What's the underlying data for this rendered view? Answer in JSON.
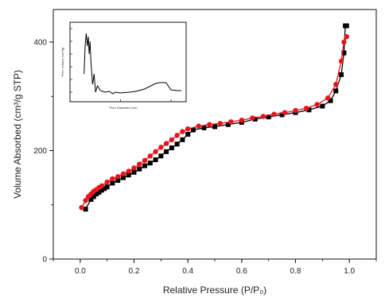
{
  "chart_data": [
    {
      "type": "scatter",
      "title": "",
      "xlabel": "Relative Pressure (P/P₀)",
      "ylabel": "Volume Absorbed (cm³/g STP)",
      "xlim": [
        -0.1,
        1.1
      ],
      "ylim": [
        0,
        460
      ],
      "xticks": [
        0.0,
        0.2,
        0.4,
        0.6,
        0.8,
        1.0
      ],
      "xtick_labels": [
        "0.0",
        "0.2",
        "0.4",
        "0.6",
        "0.8",
        "1.0"
      ],
      "yticks": [
        0,
        200,
        400
      ],
      "ytick_labels": [
        "0",
        "200",
        "400"
      ],
      "grid": false,
      "series": [
        {
          "marker": "square",
          "color": "#000000",
          "x": [
            0.02,
            0.04,
            0.05,
            0.06,
            0.07,
            0.08,
            0.09,
            0.1,
            0.12,
            0.14,
            0.16,
            0.18,
            0.2,
            0.22,
            0.24,
            0.26,
            0.28,
            0.3,
            0.32,
            0.34,
            0.36,
            0.38,
            0.4,
            0.42,
            0.46,
            0.5,
            0.55,
            0.6,
            0.65,
            0.7,
            0.75,
            0.8,
            0.85,
            0.9,
            0.93,
            0.95,
            0.97,
            0.98,
            0.985,
            0.99
          ],
          "y": [
            92,
            110,
            115,
            120,
            123,
            127,
            130,
            133,
            140,
            145,
            150,
            155,
            160,
            166,
            172,
            177,
            183,
            190,
            198,
            205,
            212,
            220,
            230,
            238,
            242,
            244,
            248,
            252,
            258,
            262,
            266,
            270,
            275,
            282,
            292,
            310,
            340,
            380,
            430,
            430
          ]
        },
        {
          "marker": "circle",
          "color": "#e8141c",
          "x": [
            0.005,
            0.02,
            0.03,
            0.04,
            0.05,
            0.06,
            0.07,
            0.08,
            0.1,
            0.12,
            0.14,
            0.16,
            0.18,
            0.2,
            0.22,
            0.24,
            0.26,
            0.28,
            0.3,
            0.32,
            0.34,
            0.36,
            0.38,
            0.4,
            0.44,
            0.48,
            0.52,
            0.56,
            0.6,
            0.64,
            0.68,
            0.72,
            0.76,
            0.8,
            0.84,
            0.88,
            0.92,
            0.95,
            0.97,
            0.98,
            0.99
          ],
          "y": [
            95,
            108,
            115,
            120,
            125,
            128,
            132,
            135,
            142,
            148,
            152,
            157,
            162,
            168,
            175,
            182,
            190,
            198,
            206,
            213,
            220,
            228,
            235,
            240,
            245,
            248,
            250,
            253,
            256,
            260,
            263,
            267,
            270,
            274,
            278,
            285,
            297,
            322,
            365,
            400,
            410
          ]
        }
      ]
    },
    {
      "type": "line",
      "title": "",
      "xlabel": "Pore Diameter (nm)",
      "ylabel": "Pore Volume (cm³/g)",
      "xscale": "log",
      "xlim": [
        1,
        200
      ],
      "ylim": [
        0,
        1
      ],
      "series": [
        {
          "color": "#000000",
          "x": [
            1.9,
            2.0,
            2.1,
            2.2,
            2.3,
            2.4,
            2.5,
            2.6,
            2.8,
            3.0,
            3.2,
            3.5,
            4.0,
            5.0,
            6.0,
            7.0,
            8.0,
            10,
            15,
            20,
            30,
            40,
            50,
            60,
            80,
            100,
            130,
            160
          ],
          "y": [
            0.35,
            0.72,
            0.86,
            0.7,
            0.82,
            0.6,
            0.76,
            0.5,
            0.22,
            0.35,
            0.12,
            0.2,
            0.14,
            0.12,
            0.13,
            0.1,
            0.12,
            0.11,
            0.12,
            0.13,
            0.16,
            0.2,
            0.23,
            0.24,
            0.24,
            0.15,
            0.14,
            0.14
          ]
        }
      ]
    }
  ]
}
